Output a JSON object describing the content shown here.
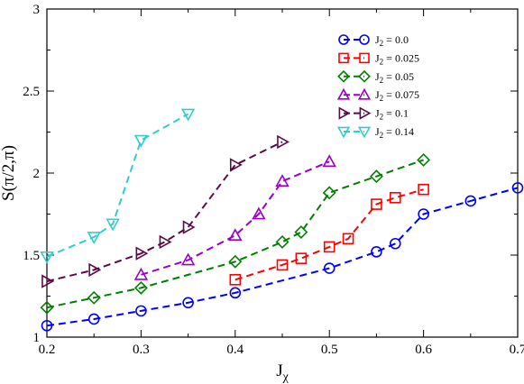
{
  "chart_data": {
    "type": "line",
    "xlabel": "J",
    "xlabel_sub": "χ",
    "ylabel": "S(π/2,π)",
    "xlim": [
      0.2,
      0.7
    ],
    "ylim": [
      1,
      3
    ],
    "xticks": [
      0.2,
      0.3,
      0.4,
      0.5,
      0.6,
      0.7
    ],
    "xtick_labels": [
      "0.2",
      "0.3",
      "0.4",
      "0.5",
      "0.6",
      "0.7"
    ],
    "yticks": [
      1,
      1.5,
      2,
      2.5,
      3
    ],
    "ytick_labels": [
      "1",
      "1.5",
      "2",
      "2.5",
      "3"
    ],
    "grid": false,
    "legend_position": "top-right",
    "series": [
      {
        "name": "J",
        "name_sub": "2",
        "name_value": " = 0.0",
        "color": "#0000ff",
        "marker": "circle",
        "x": [
          0.2,
          0.25,
          0.3,
          0.35,
          0.4,
          0.5,
          0.55,
          0.57,
          0.6,
          0.65,
          0.7
        ],
        "y": [
          1.07,
          1.11,
          1.16,
          1.21,
          1.27,
          1.42,
          1.52,
          1.57,
          1.75,
          1.83,
          1.91
        ]
      },
      {
        "name": "J",
        "name_sub": "2",
        "name_value": " = 0.025",
        "color": "#ff0000",
        "marker": "square",
        "x": [
          0.4,
          0.45,
          0.47,
          0.5,
          0.52,
          0.55,
          0.57,
          0.6
        ],
        "y": [
          1.35,
          1.44,
          1.48,
          1.55,
          1.6,
          1.81,
          1.85,
          1.9
        ]
      },
      {
        "name": "J",
        "name_sub": "2",
        "name_value": " = 0.05",
        "color": "#008000",
        "marker": "diamond",
        "x": [
          0.2,
          0.25,
          0.3,
          0.4,
          0.45,
          0.47,
          0.5,
          0.55,
          0.6
        ],
        "y": [
          1.18,
          1.24,
          1.3,
          1.46,
          1.58,
          1.64,
          1.88,
          1.98,
          2.08
        ]
      },
      {
        "name": "J",
        "name_sub": "2",
        "name_value": " = 0.075",
        "color": "#9900cc",
        "marker": "triangle-up",
        "x": [
          0.3,
          0.35,
          0.4,
          0.425,
          0.45,
          0.5
        ],
        "y": [
          1.38,
          1.47,
          1.62,
          1.75,
          1.95,
          2.07
        ]
      },
      {
        "name": "J",
        "name_sub": "2",
        "name_value": " = 0.1",
        "color": "#5c0a45",
        "marker": "triangle-right",
        "x": [
          0.2,
          0.25,
          0.3,
          0.325,
          0.35,
          0.4,
          0.45
        ],
        "y": [
          1.34,
          1.41,
          1.51,
          1.58,
          1.67,
          2.05,
          2.19
        ]
      },
      {
        "name": "J",
        "name_sub": "2",
        "name_value": " = 0.14",
        "color": "#33cccc",
        "marker": "triangle-down",
        "x": [
          0.2,
          0.25,
          0.27,
          0.3,
          0.35
        ],
        "y": [
          1.49,
          1.61,
          1.69,
          2.2,
          2.36
        ]
      }
    ]
  }
}
